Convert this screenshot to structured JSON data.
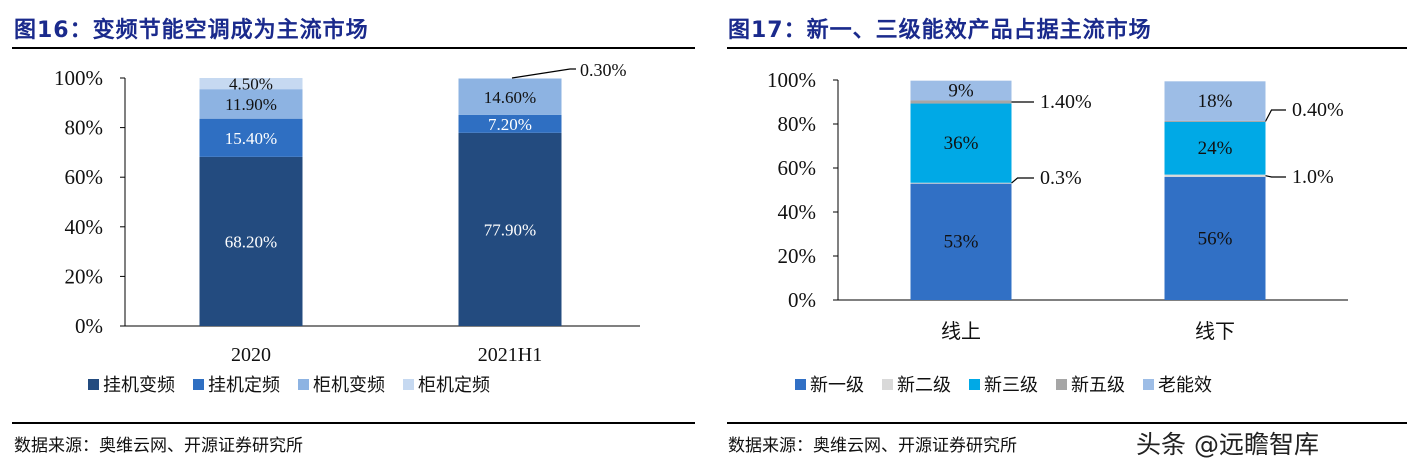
{
  "left": {
    "title": "图16：变频节能空调成为主流市场",
    "source": "数据来源：奥维云网、开源证券研究所"
  },
  "right": {
    "title": "图17：新一、三级能效产品占据主流市场",
    "source": "数据来源：奥维云网、开源证券研究所"
  },
  "watermark": "头条 @远瞻智库",
  "chart_data": [
    {
      "type": "bar",
      "stacked": true,
      "title": "",
      "categories": [
        "2020",
        "2021H1"
      ],
      "ylim": [
        0,
        100
      ],
      "yticks": [
        "0%",
        "20%",
        "40%",
        "60%",
        "80%",
        "100%"
      ],
      "legend_position": "bottom",
      "series": [
        {
          "name": "挂机变频",
          "color": "#234b7f",
          "values": [
            68.2,
            77.9
          ],
          "labels": [
            "68.20%",
            "77.90%"
          ]
        },
        {
          "name": "挂机定频",
          "color": "#2f6fc2",
          "values": [
            15.4,
            7.2
          ],
          "labels": [
            "15.40%",
            "7.20%"
          ]
        },
        {
          "name": "柜机变频",
          "color": "#8db3e2",
          "values": [
            11.9,
            14.6
          ],
          "labels": [
            "11.90%",
            "14.60%"
          ]
        },
        {
          "name": "柜机定频",
          "color": "#c6d9f1",
          "values": [
            4.5,
            0.3
          ],
          "labels": [
            "4.50%",
            "0.30%"
          ]
        }
      ]
    },
    {
      "type": "bar",
      "stacked": true,
      "title": "",
      "categories": [
        "线上",
        "线下"
      ],
      "ylim": [
        0,
        100
      ],
      "yticks": [
        "0%",
        "20%",
        "40%",
        "60%",
        "80%",
        "100%"
      ],
      "legend_position": "bottom",
      "series": [
        {
          "name": "新一级",
          "color": "#3170c5",
          "values": [
            53,
            56
          ],
          "labels": [
            "53%",
            "56%"
          ]
        },
        {
          "name": "新二级",
          "color": "#d9d9d9",
          "values": [
            0.3,
            1.0
          ],
          "labels": [
            "0.3%",
            "1.0%"
          ]
        },
        {
          "name": "新三级",
          "color": "#00a9e6",
          "values": [
            36,
            24
          ],
          "labels": [
            "36%",
            "24%"
          ]
        },
        {
          "name": "新五级",
          "color": "#a6a6a6",
          "values": [
            1.4,
            0.4
          ],
          "labels": [
            "1.40%",
            "0.40%"
          ]
        },
        {
          "name": "老能效",
          "color": "#9dbde6",
          "values": [
            9,
            18
          ],
          "labels": [
            "9%",
            "18%"
          ]
        }
      ]
    }
  ]
}
